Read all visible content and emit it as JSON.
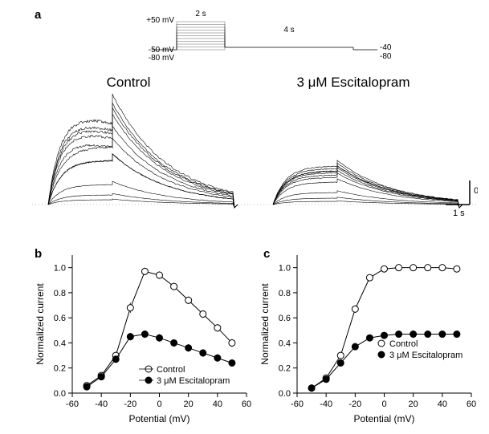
{
  "panelA": {
    "label": "a",
    "protocol": {
      "pulseDuration": "2 s",
      "tailDuration": "4 s",
      "vhold": "-80 mV",
      "vstart": "-50 mV",
      "vmax": "+50 mV",
      "vtail": "-40 mV",
      "vend": "-80 mV"
    },
    "condition1": "Control",
    "condition2": "3 μM Escitalopram",
    "scaleY": "0.5 nA",
    "scaleX": "1 s"
  },
  "panelB": {
    "label": "b",
    "xlabel": "Potential (mV)",
    "ylabel": "Normalized current",
    "xlim": [
      -60,
      60
    ],
    "ylim": [
      0,
      1.1
    ],
    "xticks": [
      -60,
      -40,
      -20,
      0,
      20,
      40,
      60
    ],
    "yticks": [
      0.0,
      0.2,
      0.4,
      0.6,
      0.8,
      1.0
    ],
    "legend": {
      "control": "Control",
      "drug": "3 μM Escitalopram"
    },
    "series": {
      "control": {
        "x": [
          -50,
          -40,
          -30,
          -20,
          -10,
          0,
          10,
          20,
          30,
          40,
          50
        ],
        "y": [
          0.06,
          0.14,
          0.3,
          0.68,
          0.97,
          0.94,
          0.85,
          0.74,
          0.63,
          0.52,
          0.4
        ],
        "err": [
          0.02,
          0.02,
          0.03,
          0.04,
          0.03,
          0.03,
          0.03,
          0.03,
          0.03,
          0.03,
          0.03
        ],
        "marker": "open",
        "color": "#000000"
      },
      "drug": {
        "x": [
          -50,
          -40,
          -30,
          -20,
          -10,
          0,
          10,
          20,
          30,
          40,
          50
        ],
        "y": [
          0.05,
          0.13,
          0.27,
          0.45,
          0.47,
          0.44,
          0.4,
          0.36,
          0.32,
          0.28,
          0.24
        ],
        "err": [
          0.02,
          0.02,
          0.03,
          0.03,
          0.03,
          0.03,
          0.03,
          0.03,
          0.03,
          0.03,
          0.02
        ],
        "marker": "filled",
        "color": "#000000"
      }
    }
  },
  "panelC": {
    "label": "c",
    "xlabel": "Potential (mV)",
    "ylabel": "Normalized current",
    "xlim": [
      -60,
      60
    ],
    "ylim": [
      0,
      1.1
    ],
    "xticks": [
      -60,
      -40,
      -20,
      0,
      20,
      40,
      60
    ],
    "yticks": [
      0.0,
      0.2,
      0.4,
      0.6,
      0.8,
      1.0
    ],
    "legend": {
      "control": "Control",
      "drug": "3 μM Escitalopram"
    },
    "series": {
      "control": {
        "x": [
          -50,
          -40,
          -30,
          -20,
          -10,
          0,
          10,
          20,
          30,
          40,
          50
        ],
        "y": [
          0.04,
          0.12,
          0.3,
          0.67,
          0.92,
          0.99,
          1.0,
          1.0,
          1.0,
          1.0,
          0.99
        ],
        "err": [
          0.02,
          0.02,
          0.03,
          0.03,
          0.02,
          0.01,
          0.01,
          0.01,
          0.01,
          0.01,
          0.01
        ],
        "marker": "open",
        "color": "#000000"
      },
      "drug": {
        "x": [
          -50,
          -40,
          -30,
          -20,
          -10,
          0,
          10,
          20,
          30,
          40,
          50
        ],
        "y": [
          0.04,
          0.11,
          0.24,
          0.37,
          0.44,
          0.46,
          0.47,
          0.47,
          0.47,
          0.47,
          0.47
        ],
        "err": [
          0.02,
          0.02,
          0.02,
          0.02,
          0.02,
          0.02,
          0.02,
          0.02,
          0.02,
          0.02,
          0.02
        ],
        "marker": "filled",
        "color": "#000000"
      }
    }
  },
  "style": {
    "axis_color": "#000000",
    "grid_color": "#ffffff",
    "line_width": 1,
    "marker_size": 4,
    "tick_fontsize": 11,
    "label_fontsize": 12,
    "title_fontsize": 17,
    "panel_label_fontsize": 15,
    "background": "#ffffff"
  }
}
